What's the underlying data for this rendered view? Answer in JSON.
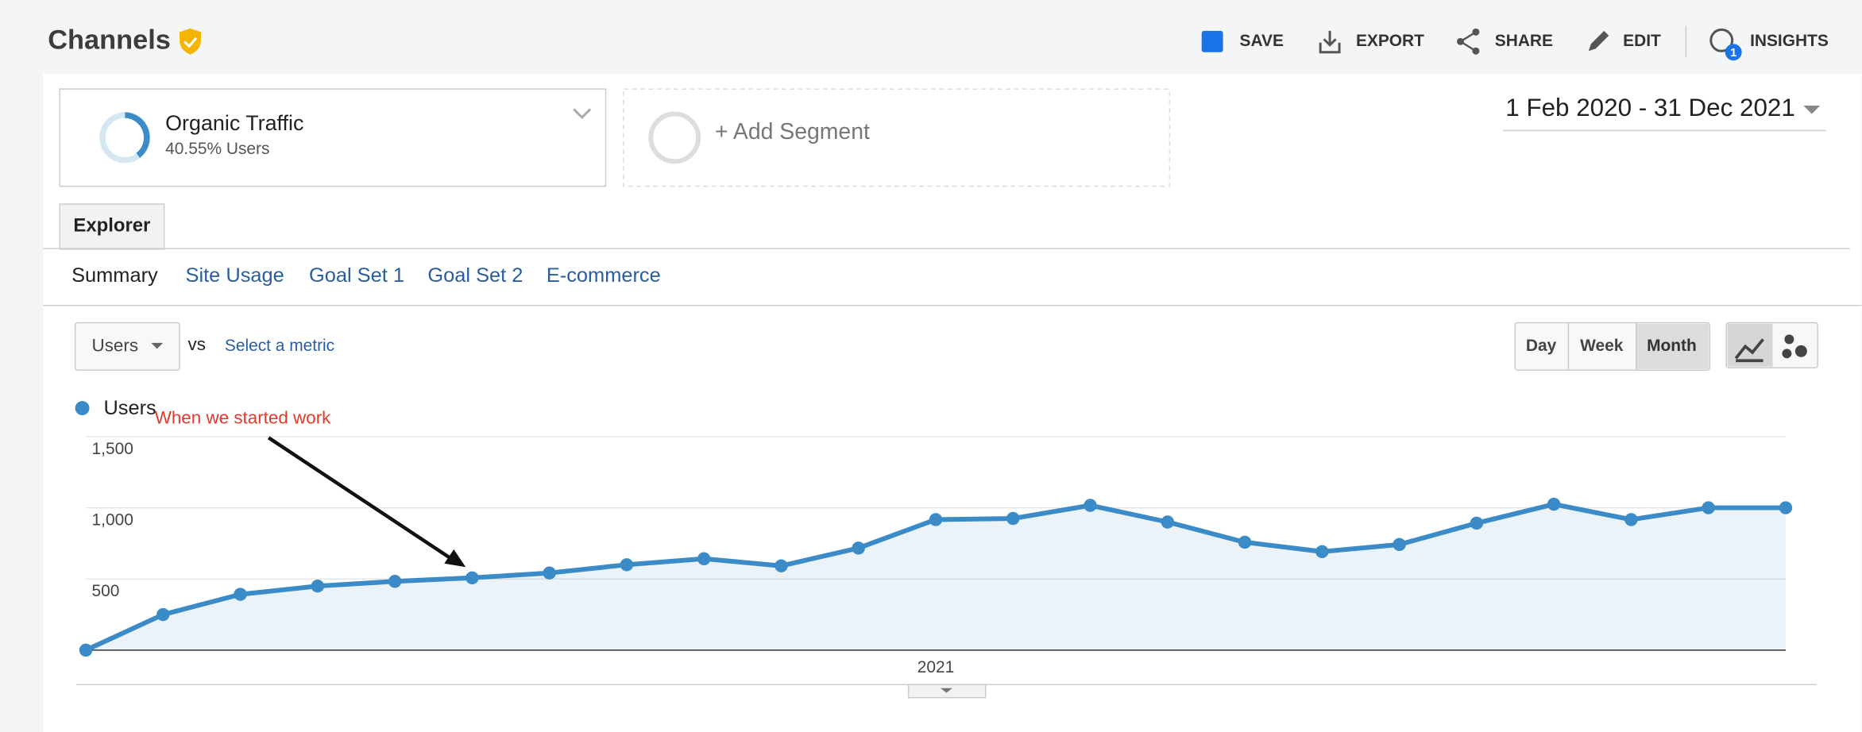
{
  "header": {
    "title": "Channels",
    "actions": [
      "SAVE",
      "EXPORT",
      "SHARE",
      "EDIT",
      "INSIGHTS"
    ],
    "insights_badge": "1"
  },
  "segments": [
    {
      "name": "Organic Traffic",
      "detail": "40.55% Users"
    },
    {
      "name": "+ Add Segment"
    }
  ],
  "date_range": "1 Feb 2020 - 31 Dec 2021",
  "tabs": [
    "Explorer"
  ],
  "subtabs": [
    "Summary",
    "Site Usage",
    "Goal Set 1",
    "Goal Set 2",
    "E-commerce"
  ],
  "metric": {
    "primary": "Users",
    "vs": "vs",
    "secondary": "Select a metric"
  },
  "granularity": [
    "Day",
    "Week",
    "Month"
  ],
  "chart_data": {
    "type": "line",
    "annotation": "When we started work",
    "categories": [
      null,
      null,
      null,
      null,
      null,
      null,
      null,
      null,
      null,
      null,
      null,
      "2021",
      null,
      null,
      null,
      null,
      null,
      null,
      null,
      null,
      null,
      null,
      null
    ],
    "series": [
      {
        "name": "Users",
        "color": "#3b8bc8",
        "values": [
          0,
          250,
          392,
          450,
          483,
          508,
          542,
          600,
          642,
          592,
          717,
          917,
          925,
          1017,
          900,
          758,
          692,
          742,
          892,
          1025,
          917,
          1000,
          1000
        ]
      }
    ],
    "ylim": [
      0,
      1500
    ],
    "yticks": [
      500,
      {
        "value": 1000,
        "label": "1,000"
      },
      {
        "value": 1500,
        "label": "1,500"
      }
    ],
    "grid": true
  }
}
